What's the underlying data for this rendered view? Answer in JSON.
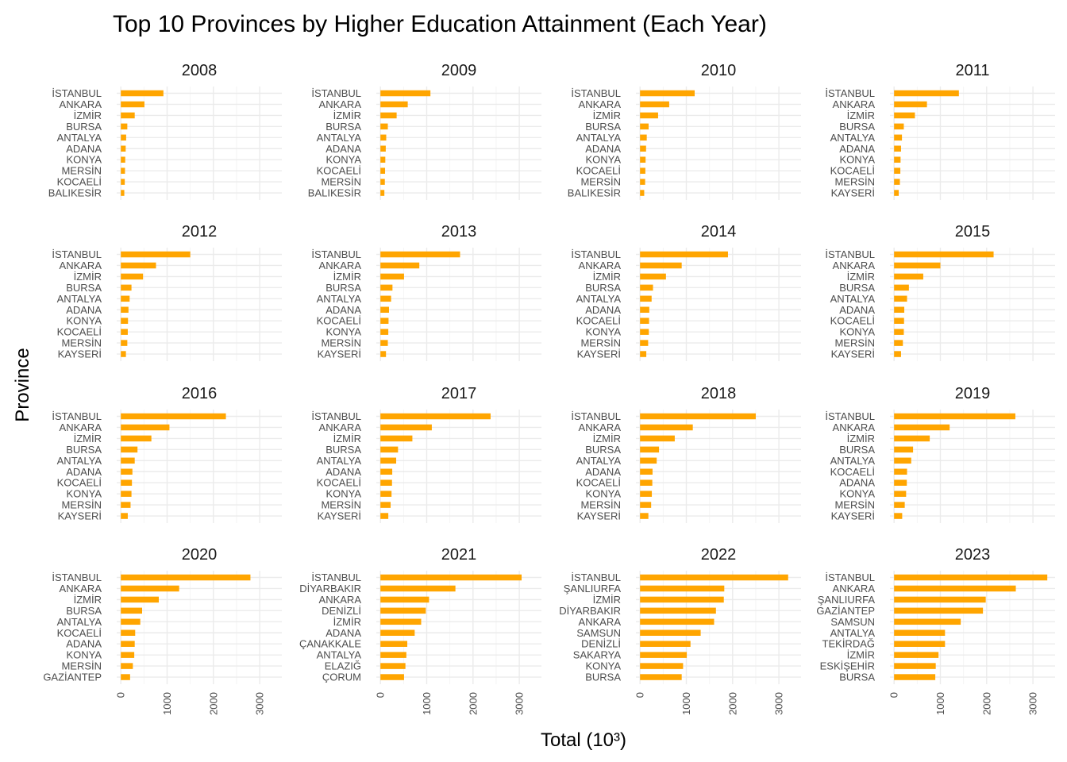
{
  "title": "Top 10 Provinces by Higher Education Attainment (Each Year)",
  "chart_data": {
    "type": "bar",
    "orientation": "horizontal",
    "facet": "year",
    "xlabel": "Total (10³)",
    "ylabel": "Province",
    "xlim": [
      0,
      3300
    ],
    "xticks": [
      0,
      1000,
      2000,
      3000
    ],
    "bar_color": "#FFA500",
    "grid": true,
    "panels": [
      {
        "year": "2008",
        "provinces": [
          "İSTANBUL",
          "ANKARA",
          "İZMİR",
          "BURSA",
          "ANTALYA",
          "ADANA",
          "KONYA",
          "MERSİN",
          "KOCAELİ",
          "BALIKESİR"
        ],
        "values": [
          920,
          510,
          300,
          140,
          115,
          105,
          95,
          90,
          85,
          75
        ]
      },
      {
        "year": "2009",
        "provinces": [
          "İSTANBUL",
          "ANKARA",
          "İZMİR",
          "BURSA",
          "ANTALYA",
          "ADANA",
          "KONYA",
          "KOCAELİ",
          "MERSİN",
          "BALIKESİR"
        ],
        "values": [
          1080,
          590,
          350,
          160,
          125,
          115,
          105,
          100,
          95,
          85
        ]
      },
      {
        "year": "2010",
        "provinces": [
          "İSTANBUL",
          "ANKARA",
          "İZMİR",
          "BURSA",
          "ANTALYA",
          "ADANA",
          "KONYA",
          "KOCAELİ",
          "MERSİN",
          "BALIKESİR"
        ],
        "values": [
          1180,
          630,
          390,
          185,
          145,
          130,
          120,
          115,
          110,
          90
        ]
      },
      {
        "year": "2011",
        "provinces": [
          "İSTANBUL",
          "ANKARA",
          "İZMİR",
          "BURSA",
          "ANTALYA",
          "ADANA",
          "KONYA",
          "KOCAELİ",
          "MERSİN",
          "KAYSERİ"
        ],
        "values": [
          1400,
          710,
          450,
          210,
          170,
          150,
          140,
          135,
          125,
          100
        ]
      },
      {
        "year": "2012",
        "provinces": [
          "İSTANBUL",
          "ANKARA",
          "İZMİR",
          "BURSA",
          "ANTALYA",
          "ADANA",
          "KONYA",
          "KOCAELİ",
          "MERSİN",
          "KAYSERİ"
        ],
        "values": [
          1500,
          760,
          480,
          230,
          190,
          165,
          155,
          150,
          140,
          110
        ]
      },
      {
        "year": "2013",
        "provinces": [
          "İSTANBUL",
          "ANKARA",
          "İZMİR",
          "BURSA",
          "ANTALYA",
          "ADANA",
          "KOCAELİ",
          "KONYA",
          "MERSİN",
          "KAYSERİ"
        ],
        "values": [
          1720,
          840,
          510,
          260,
          230,
          185,
          175,
          170,
          160,
          120
        ]
      },
      {
        "year": "2014",
        "provinces": [
          "İSTANBUL",
          "ANKARA",
          "İZMİR",
          "BURSA",
          "ANTALYA",
          "ADANA",
          "KOCAELİ",
          "KONYA",
          "MERSİN",
          "KAYSERİ"
        ],
        "values": [
          1900,
          900,
          560,
          280,
          250,
          200,
          195,
          190,
          175,
          135
        ]
      },
      {
        "year": "2015",
        "provinces": [
          "İSTANBUL",
          "ANKARA",
          "İZMİR",
          "BURSA",
          "ANTALYA",
          "ADANA",
          "KOCAELİ",
          "KONYA",
          "MERSİN",
          "KAYSERİ"
        ],
        "values": [
          2150,
          1000,
          630,
          320,
          280,
          220,
          215,
          210,
          190,
          150
        ]
      },
      {
        "year": "2016",
        "provinces": [
          "İSTANBUL",
          "ANKARA",
          "İZMİR",
          "BURSA",
          "ANTALYA",
          "ADANA",
          "KOCAELİ",
          "KONYA",
          "MERSİN",
          "KAYSERİ"
        ],
        "values": [
          2270,
          1050,
          660,
          360,
          300,
          250,
          240,
          230,
          210,
          150
        ]
      },
      {
        "year": "2017",
        "provinces": [
          "İSTANBUL",
          "ANKARA",
          "İZMİR",
          "BURSA",
          "ANTALYA",
          "ADANA",
          "KOCAELİ",
          "KONYA",
          "MERSİN",
          "KAYSERİ"
        ],
        "values": [
          2380,
          1110,
          690,
          380,
          340,
          255,
          250,
          240,
          220,
          170
        ]
      },
      {
        "year": "2018",
        "provinces": [
          "İSTANBUL",
          "ANKARA",
          "İZMİR",
          "BURSA",
          "ANTALYA",
          "ADANA",
          "KOCAELİ",
          "KONYA",
          "MERSİN",
          "KAYSERİ"
        ],
        "values": [
          2500,
          1140,
          750,
          410,
          360,
          270,
          265,
          255,
          240,
          180
        ]
      },
      {
        "year": "2019",
        "provinces": [
          "İSTANBUL",
          "ANKARA",
          "İZMİR",
          "BURSA",
          "ANTALYA",
          "KOCAELİ",
          "ADANA",
          "KONYA",
          "MERSİN",
          "KAYSERİ"
        ],
        "values": [
          2620,
          1200,
          770,
          410,
          370,
          280,
          275,
          260,
          230,
          175
        ]
      },
      {
        "year": "2020",
        "provinces": [
          "İSTANBUL",
          "ANKARA",
          "İZMİR",
          "BURSA",
          "ANTALYA",
          "KOCAELİ",
          "ADANA",
          "KONYA",
          "MERSİN",
          "GAZİANTEP"
        ],
        "values": [
          2800,
          1260,
          820,
          460,
          420,
          310,
          300,
          290,
          260,
          200
        ]
      },
      {
        "year": "2021",
        "provinces": [
          "İSTANBUL",
          "DİYARBAKIR",
          "ANKARA",
          "DENİZLİ",
          "İZMİR",
          "ADANA",
          "ÇANAKKALE",
          "ANTALYA",
          "ELAZIĞ",
          "ÇORUM"
        ],
        "values": [
          3050,
          1620,
          1050,
          980,
          880,
          740,
          580,
          560,
          540,
          510
        ]
      },
      {
        "year": "2022",
        "provinces": [
          "İSTANBUL",
          "ŞANLIURFA",
          "İZMİR",
          "DİYARBAKIR",
          "ANKARA",
          "SAMSUN",
          "DENİZLİ",
          "SAKARYA",
          "KONYA",
          "BURSA"
        ],
        "values": [
          3200,
          1820,
          1810,
          1640,
          1600,
          1310,
          1090,
          1010,
          930,
          900
        ]
      },
      {
        "year": "2023",
        "provinces": [
          "İSTANBUL",
          "ANKARA",
          "ŞANLIURFA",
          "GAZİANTEP",
          "SAMSUN",
          "ANTALYA",
          "TEKİRDAĞ",
          "İZMİR",
          "ESKİŞEHİR",
          "BURSA"
        ],
        "values": [
          3310,
          2630,
          1980,
          1920,
          1440,
          1100,
          1100,
          960,
          900,
          890
        ]
      }
    ]
  }
}
